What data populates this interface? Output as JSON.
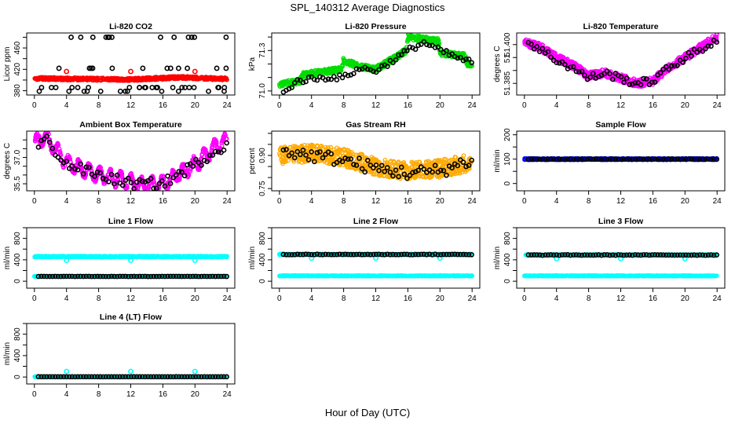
{
  "figure": {
    "title": "SPL_140312  Average Diagnostics",
    "xlabel": "Hour of Day (UTC)"
  },
  "chart_data": [
    {
      "type": "scatter",
      "title": "Li-820 CO2",
      "ylabel": "Licor ppm",
      "xlim": [
        0,
        24
      ],
      "ylim": [
        372,
        488
      ],
      "xticks": [
        0,
        4,
        8,
        12,
        16,
        20,
        24
      ],
      "yticks": [
        380,
        400,
        420,
        440,
        460,
        480
      ],
      "ytick_labels": [
        "380",
        "",
        "420",
        "",
        "460",
        ""
      ],
      "series": [
        {
          "name": "raw",
          "color": "#ff0000",
          "style": "dense-band",
          "trend": [
            [
              0,
              403
            ],
            [
              6,
              402
            ],
            [
              12,
              401
            ],
            [
              18,
              405
            ],
            [
              24,
              402
            ]
          ],
          "spread": 2.5
        },
        {
          "name": "raw-outliers",
          "color": "#ff0000",
          "style": "points",
          "points": [
            [
              4,
              416
            ],
            [
              12,
              416
            ],
            [
              20,
              416
            ]
          ]
        },
        {
          "name": "average",
          "color": "#000000",
          "style": "points",
          "levels": [
            379,
            386,
            422,
            480
          ]
        }
      ]
    },
    {
      "type": "scatter",
      "title": "Li-820 Pressure",
      "ylabel": "kPa",
      "xlim": [
        0,
        24
      ],
      "ylim": [
        70.97,
        71.43
      ],
      "xticks": [
        0,
        4,
        8,
        12,
        16,
        20,
        24
      ],
      "yticks": [
        71.0,
        71.1,
        71.2,
        71.3,
        71.4
      ],
      "ytick_labels": [
        "71.0",
        "",
        "",
        "71.3",
        ""
      ],
      "series": [
        {
          "name": "raw",
          "color": "#00dd00",
          "style": "dense-band",
          "trend": [
            [
              0,
              71.05
            ],
            [
              2.5,
              71.07
            ],
            [
              3,
              71.12
            ],
            [
              7.8,
              71.16
            ],
            [
              7.9,
              71.23
            ],
            [
              10,
              71.18
            ],
            [
              12,
              71.16
            ],
            [
              15.8,
              71.3
            ],
            [
              16,
              71.4
            ],
            [
              19.8,
              71.37
            ],
            [
              20,
              71.28
            ],
            [
              23,
              71.26
            ],
            [
              23.5,
              71.2
            ]
          ],
          "spread": 0.02
        },
        {
          "name": "average",
          "color": "#000000",
          "style": "points",
          "trend": [
            [
              0.5,
              70.98
            ],
            [
              2,
              71.07
            ],
            [
              4,
              71.09
            ],
            [
              6,
              71.1
            ],
            [
              8,
              71.1
            ],
            [
              10,
              71.17
            ],
            [
              12,
              71.15
            ],
            [
              14,
              71.22
            ],
            [
              16,
              71.3
            ],
            [
              18,
              71.36
            ],
            [
              20,
              71.3
            ],
            [
              22,
              71.25
            ],
            [
              24,
              71.21
            ]
          ],
          "spread": 0.02
        }
      ]
    },
    {
      "type": "scatter",
      "title": "Li-820 Temperature",
      "ylabel": "degrees C",
      "xlim": [
        0,
        24
      ],
      "ylim": [
        51.3805,
        51.4045
      ],
      "xticks": [
        0,
        4,
        8,
        12,
        16,
        20,
        24
      ],
      "yticks": [
        51.385,
        51.39,
        51.395,
        51.4
      ],
      "ytick_labels": [
        "51.385",
        "",
        "51.",
        "51.400"
      ],
      "series": [
        {
          "name": "raw",
          "color": "#ff00ff",
          "style": "dense-band",
          "trend": [
            [
              0,
              51.401
            ],
            [
              2,
              51.399
            ],
            [
              4,
              51.395
            ],
            [
              6,
              51.392
            ],
            [
              8,
              51.388
            ],
            [
              10,
              51.389
            ],
            [
              12,
              51.387
            ],
            [
              14,
              51.385
            ],
            [
              16,
              51.386
            ],
            [
              18,
              51.391
            ],
            [
              20,
              51.395
            ],
            [
              22,
              51.399
            ],
            [
              24,
              51.403
            ]
          ],
          "spread": 0.0015
        },
        {
          "name": "average",
          "color": "#000000",
          "style": "points",
          "trend": [
            [
              0.5,
              51.401
            ],
            [
              2,
              51.398
            ],
            [
              4,
              51.394
            ],
            [
              6,
              51.391
            ],
            [
              8,
              51.387
            ],
            [
              10,
              51.389
            ],
            [
              12,
              51.387
            ],
            [
              14,
              51.385
            ],
            [
              16,
              51.386
            ],
            [
              18,
              51.391
            ],
            [
              20,
              51.395
            ],
            [
              22,
              51.398
            ],
            [
              24,
              51.402
            ]
          ],
          "spread": 0.0015
        }
      ]
    },
    {
      "type": "scatter",
      "title": "Ambient Box Temperature",
      "ylabel": "degrees C",
      "xlim": [
        0,
        24
      ],
      "ylim": [
        35.1,
        38.5
      ],
      "xticks": [
        0,
        4,
        8,
        12,
        16,
        20,
        24
      ],
      "yticks": [
        35.5,
        36.0,
        36.5,
        37.0,
        37.5,
        38.0
      ],
      "ytick_labels": [
        "35.5",
        "",
        "",
        "37.0",
        "",
        ""
      ],
      "series": [
        {
          "name": "raw",
          "color": "#ff00ff",
          "style": "dense-band",
          "trend": [
            [
              0,
              37.8
            ],
            [
              1.3,
              38.2
            ],
            [
              4,
              36.7
            ],
            [
              8,
              36.0
            ],
            [
              12,
              35.6
            ],
            [
              13,
              35.4
            ],
            [
              16,
              35.5
            ],
            [
              20,
              36.6
            ],
            [
              23,
              37.8
            ],
            [
              24,
              37.9
            ]
          ],
          "spread": 0.12,
          "oscillation": 0.4
        },
        {
          "name": "average",
          "color": "#000000",
          "style": "points",
          "trend": [
            [
              0.5,
              37.6
            ],
            [
              1.3,
              38.1
            ],
            [
              4,
              36.6
            ],
            [
              8,
              36.0
            ],
            [
              12,
              35.5
            ],
            [
              16,
              35.5
            ],
            [
              20,
              36.6
            ],
            [
              24,
              37.8
            ]
          ],
          "spread": 0.3
        }
      ]
    },
    {
      "type": "scatter",
      "title": "Gas Stream RH",
      "ylabel": "percent",
      "xlim": [
        0,
        24
      ],
      "ylim": [
        0.74,
        1.01
      ],
      "xticks": [
        0,
        4,
        8,
        12,
        16,
        20,
        24
      ],
      "yticks": [
        0.75,
        0.8,
        0.85,
        0.9,
        0.95,
        1.0
      ],
      "ytick_labels": [
        "0.75",
        "",
        "",
        "0.90",
        "",
        ""
      ],
      "series": [
        {
          "name": "raw",
          "color": "#ffaa00",
          "style": "dense-band",
          "trend": [
            [
              0,
              0.9
            ],
            [
              4,
              0.91
            ],
            [
              8,
              0.89
            ],
            [
              12,
              0.85
            ],
            [
              16,
              0.83
            ],
            [
              20,
              0.84
            ],
            [
              24,
              0.87
            ]
          ],
          "spread": 0.04
        },
        {
          "name": "average",
          "color": "#000000",
          "style": "points",
          "trend": [
            [
              0.5,
              0.92
            ],
            [
              4,
              0.9
            ],
            [
              8,
              0.88
            ],
            [
              12,
              0.84
            ],
            [
              16,
              0.82
            ],
            [
              20,
              0.83
            ],
            [
              24,
              0.88
            ]
          ],
          "spread": 0.03
        }
      ]
    },
    {
      "type": "scatter",
      "title": "Sample Flow",
      "ylabel": "ml/min",
      "xlim": [
        0,
        24
      ],
      "ylim": [
        -30,
        215
      ],
      "xticks": [
        0,
        4,
        8,
        12,
        16,
        20,
        24
      ],
      "yticks": [
        0,
        50,
        100,
        150,
        200
      ],
      "ytick_labels": [
        "0",
        "",
        "100",
        "",
        "200"
      ],
      "series": [
        {
          "name": "raw",
          "color": "#0000ff",
          "style": "dense-band",
          "trend": [
            [
              0,
              100
            ],
            [
              24,
              100
            ]
          ],
          "spread": 3
        },
        {
          "name": "average",
          "color": "#000000",
          "style": "points",
          "trend": [
            [
              0.5,
              100
            ],
            [
              24,
              100
            ]
          ],
          "spread": 1
        }
      ]
    },
    {
      "type": "scatter",
      "title": "Line 1 Flow",
      "ylabel": "ml/min",
      "xlim": [
        0,
        24
      ],
      "ylim": [
        -130,
        1000
      ],
      "xticks": [
        0,
        4,
        8,
        12,
        16,
        20,
        24
      ],
      "yticks": [
        0,
        200,
        400,
        600,
        800,
        1000
      ],
      "ytick_labels": [
        "0",
        "",
        "400",
        "",
        "800",
        ""
      ],
      "series": [
        {
          "name": "raw-high",
          "color": "#00ffff",
          "style": "dense-band",
          "trend": [
            [
              0,
              460
            ],
            [
              24,
              460
            ]
          ],
          "spread": 10
        },
        {
          "name": "raw-low",
          "color": "#00ffff",
          "style": "dense-band",
          "trend": [
            [
              0,
              90
            ],
            [
              24,
              90
            ]
          ],
          "spread": 5
        },
        {
          "name": "raw-outliers",
          "color": "#00ffff",
          "style": "points",
          "points": [
            [
              4,
              390
            ],
            [
              12,
              390
            ],
            [
              20,
              390
            ]
          ]
        },
        {
          "name": "average",
          "color": "#000000",
          "style": "points",
          "trend": [
            [
              0.5,
              90
            ],
            [
              24,
              90
            ]
          ],
          "spread": 2
        }
      ]
    },
    {
      "type": "scatter",
      "title": "Line 2 Flow",
      "ylabel": "ml/min",
      "xlim": [
        0,
        24
      ],
      "ylim": [
        -130,
        1000
      ],
      "xticks": [
        0,
        4,
        8,
        12,
        16,
        20,
        24
      ],
      "yticks": [
        0,
        200,
        400,
        600,
        800,
        1000
      ],
      "ytick_labels": [
        "0",
        "",
        "400",
        "",
        "800",
        ""
      ],
      "series": [
        {
          "name": "raw-high",
          "color": "#00ffff",
          "style": "dense-band",
          "trend": [
            [
              0,
              500
            ],
            [
              24,
              500
            ]
          ],
          "spread": 10
        },
        {
          "name": "raw-low",
          "color": "#00ffff",
          "style": "dense-band",
          "trend": [
            [
              0,
              100
            ],
            [
              24,
              100
            ]
          ],
          "spread": 5
        },
        {
          "name": "raw-outliers",
          "color": "#00ffff",
          "style": "points",
          "points": [
            [
              4,
              430
            ],
            [
              12,
              430
            ],
            [
              20,
              430
            ]
          ]
        },
        {
          "name": "average",
          "color": "#000000",
          "style": "points",
          "trend": [
            [
              0.5,
              500
            ],
            [
              24,
              500
            ]
          ],
          "spread": 6
        }
      ]
    },
    {
      "type": "scatter",
      "title": "Line 3 Flow",
      "ylabel": "ml/min",
      "xlim": [
        0,
        24
      ],
      "ylim": [
        -130,
        1000
      ],
      "xticks": [
        0,
        4,
        8,
        12,
        16,
        20,
        24
      ],
      "yticks": [
        0,
        200,
        400,
        600,
        800,
        1000
      ],
      "ytick_labels": [
        "0",
        "",
        "400",
        "",
        "800",
        ""
      ],
      "series": [
        {
          "name": "raw-high",
          "color": "#00ffff",
          "style": "dense-band",
          "trend": [
            [
              0,
              490
            ],
            [
              24,
              490
            ]
          ],
          "spread": 10
        },
        {
          "name": "raw-low",
          "color": "#00ffff",
          "style": "dense-band",
          "trend": [
            [
              0,
              100
            ],
            [
              24,
              100
            ]
          ],
          "spread": 5
        },
        {
          "name": "raw-outliers",
          "color": "#00ffff",
          "style": "points",
          "points": [
            [
              4,
              420
            ],
            [
              12,
              420
            ],
            [
              20,
              420
            ]
          ]
        },
        {
          "name": "average",
          "color": "#000000",
          "style": "points",
          "trend": [
            [
              0.5,
              490
            ],
            [
              24,
              490
            ]
          ],
          "spread": 6
        }
      ]
    },
    {
      "type": "scatter",
      "title": "Line 4 (LT) Flow",
      "ylabel": "ml/min",
      "xlim": [
        0,
        24
      ],
      "ylim": [
        -130,
        1000
      ],
      "xticks": [
        0,
        4,
        8,
        12,
        16,
        20,
        24
      ],
      "yticks": [
        0,
        200,
        400,
        600,
        800,
        1000
      ],
      "ytick_labels": [
        "0",
        "",
        "400",
        "",
        "800",
        ""
      ],
      "series": [
        {
          "name": "raw",
          "color": "#00ffff",
          "style": "dense-band",
          "trend": [
            [
              0,
              5
            ],
            [
              24,
              5
            ]
          ],
          "spread": 3
        },
        {
          "name": "raw-outliers",
          "color": "#00ffff",
          "style": "points",
          "points": [
            [
              4,
              105
            ],
            [
              12,
              105
            ],
            [
              20,
              105
            ]
          ]
        },
        {
          "name": "average",
          "color": "#000000",
          "style": "points",
          "trend": [
            [
              0.5,
              5
            ],
            [
              24,
              5
            ]
          ],
          "spread": 1
        }
      ]
    }
  ]
}
